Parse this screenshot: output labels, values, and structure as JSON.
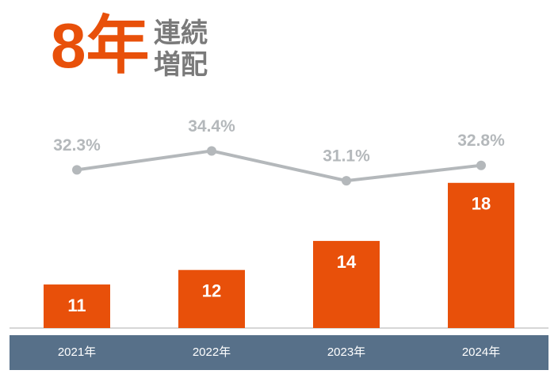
{
  "chart_data": {
    "type": "bar-line",
    "title": "8年",
    "subtitle": [
      "連続",
      "増配"
    ],
    "categories": [
      "2021年",
      "2022年",
      "2023年",
      "2024年"
    ],
    "series": [
      {
        "type": "bar",
        "color": "#e8500a",
        "values": [
          11,
          12,
          14,
          18
        ]
      },
      {
        "type": "line",
        "axis": "y2",
        "color": "#b4b8bb",
        "values": [
          32.3,
          34.4,
          31.1,
          32.8
        ],
        "value_labels": [
          "32.3%",
          "34.4%",
          "31.1%",
          "32.8%"
        ]
      }
    ],
    "ylim": [
      8,
      23.5
    ],
    "y2lim": [
      14.8,
      39.7
    ]
  }
}
